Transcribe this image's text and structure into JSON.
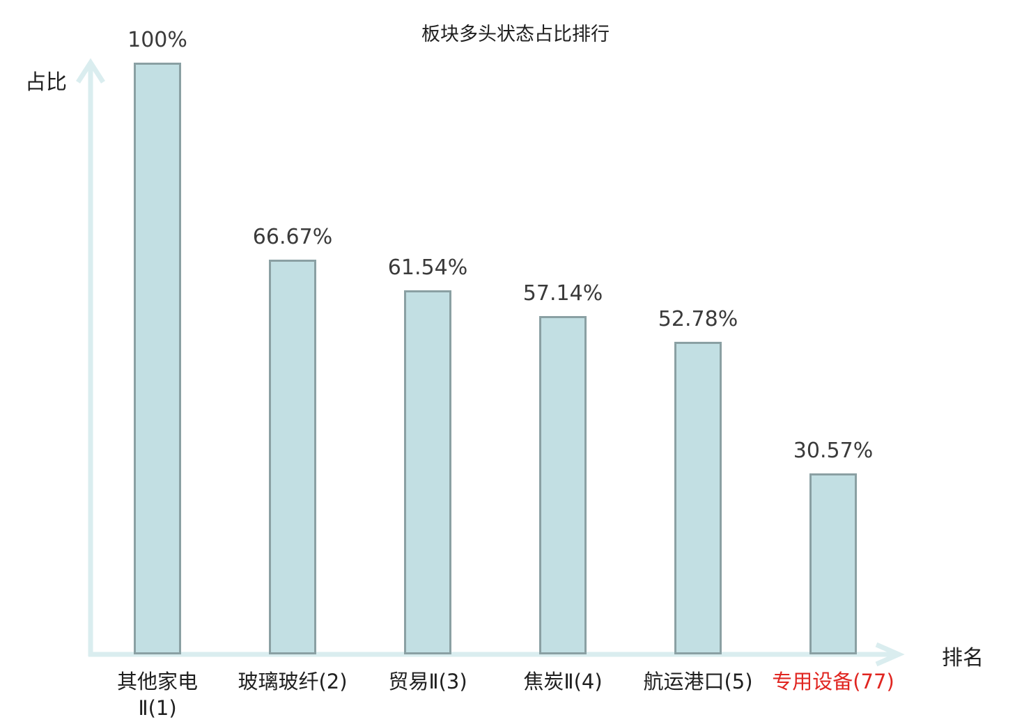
{
  "chart_data": {
    "type": "bar",
    "title": "板块多头状态占比排行",
    "xlabel": "排名",
    "ylabel": "占比",
    "ylim": [
      0,
      100
    ],
    "grid": false,
    "legend": false,
    "categories": [
      "其他家电Ⅱ(1)",
      "玻璃玻纤(2)",
      "贸易Ⅱ(3)",
      "焦炭Ⅱ(4)",
      "航运港口(5)",
      "专用设备(77)"
    ],
    "category_lines": [
      [
        "其他家电",
        "Ⅱ(1)"
      ],
      [
        "玻璃玻纤(2)"
      ],
      [
        "贸易Ⅱ(3)"
      ],
      [
        "焦炭Ⅱ(4)"
      ],
      [
        "航运港口(5)"
      ],
      [
        "专用设备(77)"
      ]
    ],
    "values": [
      100,
      66.67,
      61.54,
      57.14,
      52.78,
      30.57
    ],
    "value_labels": [
      "100%",
      "66.67%",
      "61.54%",
      "57.14%",
      "52.78%",
      "30.57%"
    ],
    "highlighted_category_index": 5
  },
  "colors": {
    "bar_fill": "#c2dfe3",
    "bar_border": "#8aa0a3",
    "axis": "#daedef",
    "text": "#1f1f1f",
    "value_text": "#3a3a3a",
    "highlight": "#e02520",
    "background": "#ffffff"
  }
}
